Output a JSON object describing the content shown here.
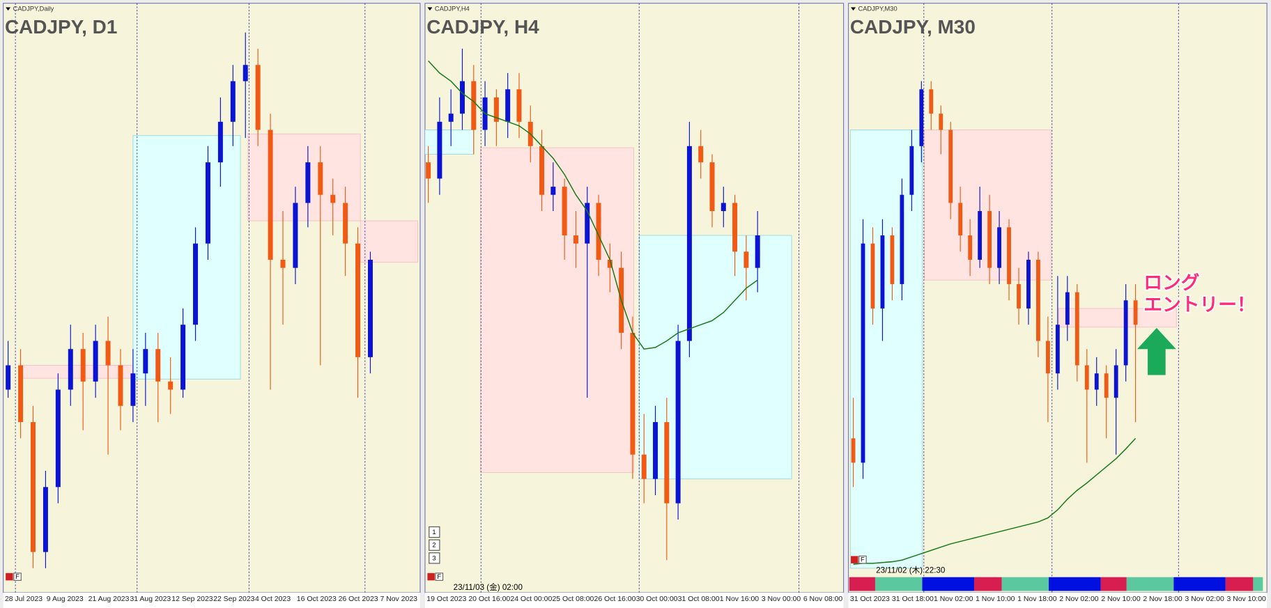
{
  "panels": [
    {
      "name": "CADJPY,Daily",
      "title": "CADJPY, D1",
      "ylim": [
        103.6,
        110.6
      ],
      "button": "F",
      "x_labels": [
        "28 Jul 2023",
        "9 Aug 2023",
        "21 Aug 2023",
        "31 Aug 2023",
        "12 Sep 2023",
        "22 Sep 2023",
        "4 Oct 2023",
        "16 Oct 2023",
        "26 Oct 2023",
        "7 Nov 2023"
      ],
      "candles": [
        [
          106.0,
          106.6,
          105.9,
          106.3
        ],
        [
          106.3,
          106.5,
          105.4,
          105.6
        ],
        [
          105.6,
          105.8,
          103.8,
          104.0
        ],
        [
          104.0,
          105.0,
          103.8,
          104.8
        ],
        [
          104.8,
          106.2,
          104.6,
          106.0
        ],
        [
          106.0,
          106.8,
          105.8,
          106.5
        ],
        [
          106.5,
          106.7,
          105.5,
          106.1
        ],
        [
          106.1,
          106.8,
          105.9,
          106.6
        ],
        [
          106.6,
          106.9,
          105.2,
          106.3
        ],
        [
          106.3,
          106.5,
          105.5,
          105.8
        ],
        [
          105.8,
          106.5,
          105.6,
          106.2
        ],
        [
          106.2,
          106.7,
          105.8,
          106.5
        ],
        [
          106.5,
          106.7,
          105.6,
          106.1
        ],
        [
          106.1,
          106.4,
          105.7,
          106.0
        ],
        [
          106.0,
          107.0,
          105.9,
          106.8
        ],
        [
          106.8,
          108.0,
          106.6,
          107.8
        ],
        [
          107.8,
          109.0,
          107.6,
          108.8
        ],
        [
          108.8,
          109.6,
          108.5,
          109.3
        ],
        [
          109.3,
          110.0,
          109.0,
          109.8
        ],
        [
          109.8,
          110.4,
          109.1,
          110.0
        ],
        [
          110.0,
          110.2,
          109.0,
          109.2
        ],
        [
          109.2,
          109.4,
          106.0,
          107.6
        ],
        [
          107.6,
          108.2,
          106.8,
          107.5
        ],
        [
          107.5,
          108.5,
          107.3,
          108.3
        ],
        [
          108.3,
          109.0,
          108.0,
          108.8
        ],
        [
          108.8,
          109.0,
          106.3,
          108.4
        ],
        [
          108.4,
          108.6,
          107.9,
          108.3
        ],
        [
          108.3,
          108.5,
          107.4,
          107.8
        ],
        [
          107.8,
          108.0,
          105.9,
          106.4
        ],
        [
          106.4,
          107.7,
          106.2,
          107.6
        ]
      ],
      "zones": [
        {
          "from": 1,
          "to": 10,
          "low": 106.14,
          "high": 106.3,
          "color": "#ffe4e1"
        },
        {
          "from": 10,
          "to": 18.6,
          "low": 106.13,
          "high": 109.13,
          "color": "#e0ffff"
        },
        {
          "from": 19.2,
          "to": 28.2,
          "low": 108.08,
          "high": 109.15,
          "color": "#ffe4e1"
        },
        {
          "from": 28.2,
          "to": 32.8,
          "low": 107.57,
          "high": 108.08,
          "color": "#ffe4e1"
        }
      ]
    },
    {
      "name": "CADJPY,H4",
      "title": "CADJPY, H4",
      "ylim": [
        103.2,
        110.2
      ],
      "button": "F",
      "stamp": "23/11/03 (金) 02:00",
      "levels": [
        "1",
        "2",
        "3"
      ],
      "x_labels": [
        "19 Oct 2023",
        "20 Oct 16:00",
        "24 Oct 00:00",
        "25 Oct 08:00",
        "26 Oct 16:00",
        "30 Oct 00:00",
        "31 Oct 08:00",
        "1 Nov 16:00",
        "3 Nov 00:00",
        "6 Nov 08:00"
      ],
      "candles": [
        [
          108.4,
          108.6,
          107.9,
          108.2
        ],
        [
          108.2,
          109.2,
          108.0,
          108.9
        ],
        [
          108.9,
          109.3,
          108.6,
          109.0
        ],
        [
          109.0,
          109.8,
          108.8,
          109.4
        ],
        [
          109.4,
          109.6,
          108.5,
          108.8
        ],
        [
          108.8,
          109.4,
          108.6,
          109.2
        ],
        [
          109.2,
          109.3,
          108.6,
          108.9
        ],
        [
          108.9,
          109.5,
          108.7,
          109.3
        ],
        [
          109.3,
          109.5,
          108.7,
          108.9
        ],
        [
          108.9,
          109.1,
          108.4,
          108.6
        ],
        [
          108.6,
          108.8,
          107.8,
          108.0
        ],
        [
          108.0,
          108.4,
          107.8,
          108.1
        ],
        [
          108.1,
          108.2,
          107.2,
          107.5
        ],
        [
          107.5,
          107.8,
          107.1,
          107.4
        ],
        [
          107.4,
          108.1,
          105.5,
          107.9
        ],
        [
          107.9,
          108.0,
          107.0,
          107.2
        ],
        [
          107.2,
          107.4,
          106.8,
          107.1
        ],
        [
          107.1,
          107.3,
          106.1,
          106.3
        ],
        [
          106.3,
          106.5,
          104.5,
          104.8
        ],
        [
          104.8,
          105.3,
          104.2,
          104.5
        ],
        [
          104.5,
          105.4,
          104.3,
          105.2
        ],
        [
          105.2,
          105.5,
          103.5,
          104.2
        ],
        [
          104.2,
          106.4,
          104.0,
          106.2
        ],
        [
          106.2,
          108.9,
          106.0,
          108.6
        ],
        [
          108.6,
          108.8,
          108.2,
          108.4
        ],
        [
          108.4,
          108.5,
          107.6,
          107.8
        ],
        [
          107.8,
          108.1,
          107.6,
          107.9
        ],
        [
          107.9,
          108.0,
          107.0,
          107.3
        ],
        [
          107.3,
          107.5,
          106.7,
          107.1
        ],
        [
          107.1,
          107.8,
          106.8,
          107.5
        ]
      ],
      "ma": [
        109.65,
        109.5,
        109.4,
        109.25,
        109.15,
        109.0,
        108.95,
        108.9,
        108.85,
        108.75,
        108.6,
        108.45,
        108.25,
        108.0,
        107.8,
        107.5,
        107.2,
        106.7,
        106.3,
        106.1,
        106.12,
        106.2,
        106.3,
        106.35,
        106.4,
        106.45,
        106.55,
        106.7,
        106.85,
        106.95
      ],
      "zones": [
        {
          "from": -0.3,
          "to": 4,
          "low": 108.5,
          "high": 108.8,
          "color": "#e0ffff"
        },
        {
          "from": 4.6,
          "to": 18.1,
          "low": 104.58,
          "high": 108.58,
          "color": "#ffe4e1"
        },
        {
          "from": 18.6,
          "to": 32,
          "low": 104.5,
          "high": 107.5,
          "color": "#e0ffff"
        }
      ]
    },
    {
      "name": "CADJPY,M30",
      "title": "CADJPY, M30",
      "ylim": [
        103.0,
        110.0
      ],
      "button": "F",
      "stamp": "23/11/02 (木) 22:30",
      "annotation": [
        "ロング",
        "エントリー！"
      ],
      "x_labels": [
        "31 Oct 2023",
        "31 Oct 18:00",
        "1 Nov 02:00",
        "1 Nov 10:00",
        "1 Nov 18:00",
        "2 Nov 02:00",
        "2 Nov 10:00",
        "2 Nov 18:00",
        "3 Nov 02:00",
        "3 Nov 10:00"
      ],
      "candles": [
        [
          104.8,
          105.3,
          104.2,
          104.5
        ],
        [
          104.5,
          107.5,
          104.3,
          107.2
        ],
        [
          107.2,
          107.4,
          106.2,
          106.4
        ],
        [
          106.4,
          107.5,
          106.0,
          107.3
        ],
        [
          107.3,
          107.4,
          106.5,
          106.7
        ],
        [
          106.7,
          108.0,
          106.5,
          107.8
        ],
        [
          107.8,
          108.6,
          107.6,
          108.4
        ],
        [
          108.4,
          109.2,
          108.2,
          109.1
        ],
        [
          109.1,
          109.2,
          108.6,
          108.8
        ],
        [
          108.8,
          108.9,
          108.3,
          108.6
        ],
        [
          108.6,
          108.7,
          107.5,
          107.7
        ],
        [
          107.7,
          107.9,
          107.1,
          107.3
        ],
        [
          107.3,
          107.5,
          106.8,
          107.0
        ],
        [
          107.0,
          107.9,
          106.9,
          107.6
        ],
        [
          107.6,
          107.8,
          106.7,
          106.9
        ],
        [
          106.9,
          107.6,
          106.7,
          107.4
        ],
        [
          107.4,
          107.5,
          106.5,
          106.7
        ],
        [
          106.7,
          106.9,
          106.2,
          106.4
        ],
        [
          106.4,
          107.1,
          106.2,
          107.0
        ],
        [
          107.0,
          107.1,
          105.8,
          106.0
        ],
        [
          106.0,
          106.3,
          105.0,
          105.6
        ],
        [
          105.6,
          106.8,
          105.4,
          106.2
        ],
        [
          106.2,
          106.8,
          106.0,
          106.6
        ],
        [
          106.6,
          106.7,
          105.5,
          105.7
        ],
        [
          105.7,
          105.9,
          104.5,
          105.4
        ],
        [
          105.4,
          105.8,
          105.2,
          105.6
        ],
        [
          105.6,
          105.7,
          104.8,
          105.3
        ],
        [
          105.3,
          105.9,
          104.6,
          105.7
        ],
        [
          105.7,
          106.7,
          105.5,
          106.5
        ],
        [
          106.5,
          106.7,
          105.0,
          106.2
        ]
      ],
      "ma": [
        103.25,
        103.26,
        103.26,
        103.27,
        103.28,
        103.3,
        103.34,
        103.38,
        103.42,
        103.46,
        103.5,
        103.53,
        103.56,
        103.59,
        103.62,
        103.65,
        103.68,
        103.71,
        103.74,
        103.77,
        103.82,
        103.92,
        104.05,
        104.16,
        104.25,
        104.35,
        104.45,
        104.55,
        104.67,
        104.8
      ],
      "zones": [
        {
          "from": -0.3,
          "to": 7.1,
          "low": 103.2,
          "high": 108.6,
          "color": "#e0ffff"
        },
        {
          "from": 7.3,
          "to": 20.3,
          "low": 106.75,
          "high": 108.6,
          "color": "#ffe4e1"
        },
        {
          "from": 21.1,
          "to": 33.2,
          "low": 106.17,
          "high": 106.4,
          "color": "#ffe4e1"
        }
      ]
    }
  ],
  "bull_color": "#0a14d2",
  "bear_color": "#f05a14",
  "ma_color": "#1a7a1a"
}
